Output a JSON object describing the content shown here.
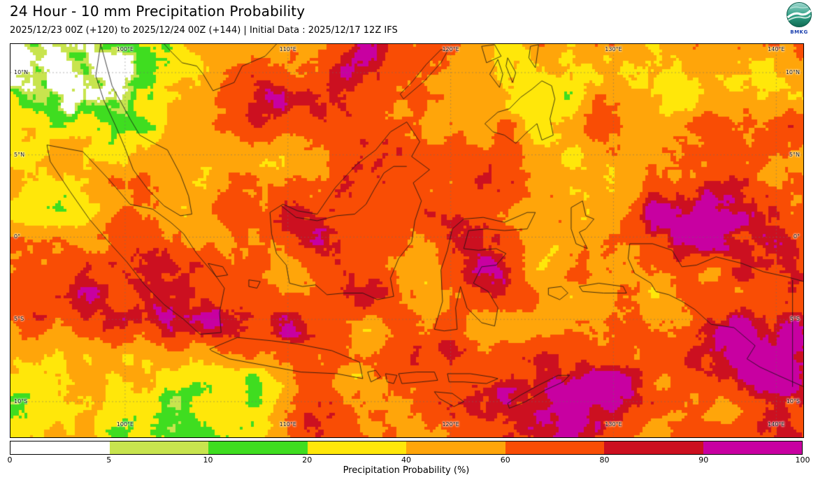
{
  "header": {
    "title": "24 Hour - 10 mm Precipitation Probability",
    "subtitle": "2025/12/23 00Z (+120) to 2025/12/24 00Z (+144) | Initial Data : 2025/12/17 12Z IFS",
    "logo": "BMKG"
  },
  "map": {
    "lon_labels": [
      "100°E",
      "110°E",
      "120°E",
      "130°E",
      "140°E"
    ],
    "lat_labels": [
      "10°N",
      "5°N",
      "0°",
      "5°S",
      "10°S"
    ]
  },
  "colorbar": {
    "label": "Precipitation Probability (%)",
    "ticks": [
      "0",
      "5",
      "10",
      "20",
      "40",
      "60",
      "80",
      "90",
      "100"
    ],
    "colors": [
      "#ffffff",
      "#c8e44e",
      "#3fdd20",
      "#ffe70a",
      "#ffa50a",
      "#f94d05",
      "#cc1020",
      "#c800a1"
    ]
  },
  "chart_data": {
    "type": "heatmap",
    "title": "24 Hour - 10 mm Precipitation Probability",
    "subtitle": "2025/12/23 00Z (+120) to 2025/12/24 00Z (+144) | Initial Data : 2025/12/17 12Z IFS",
    "region": {
      "lon_min": 93,
      "lon_max": 141.7,
      "lat_min": -12.2,
      "lat_max": 11.7
    },
    "x_ticks_deg": [
      100,
      110,
      120,
      130,
      140
    ],
    "y_ticks_deg": [
      10,
      5,
      0,
      -5,
      -10
    ],
    "grid": "dashed 5-degree graticule",
    "legend_position": "bottom horizontal colorbar",
    "legend": {
      "label": "Precipitation Probability (%)",
      "bins": [
        {
          "from": 0,
          "to": 5,
          "color": "#ffffff"
        },
        {
          "from": 5,
          "to": 10,
          "color": "#c8e44e"
        },
        {
          "from": 10,
          "to": 20,
          "color": "#3fdd20"
        },
        {
          "from": 20,
          "to": 40,
          "color": "#ffe70a"
        },
        {
          "from": 40,
          "to": 60,
          "color": "#ffa50a"
        },
        {
          "from": 60,
          "to": 80,
          "color": "#f94d05"
        },
        {
          "from": 80,
          "to": 90,
          "color": "#cc1020"
        },
        {
          "from": 90,
          "to": 100,
          "color": "#c800a1"
        }
      ]
    },
    "pattern_summary": "High probability (orange/red/magenta, 60-100%) over most of Indonesia; very high magenta band southwest of Sumatra and over southeastern/bottom-right seas; low probability (white/green, 0-20%) over mainland Southeast Asia in the northwest corner and scattered green/yellow along the northern and southwestern edges."
  }
}
